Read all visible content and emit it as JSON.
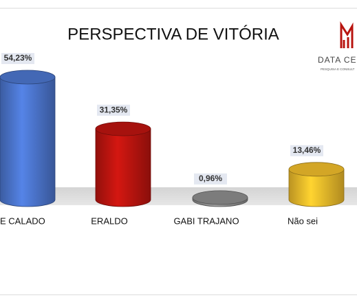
{
  "chart_data": {
    "type": "bar",
    "title": "PERSPECTIVA DE VITÓRIA",
    "logo": {
      "name": "DATA CE",
      "tagline": "PESQUISA E CONSULT"
    },
    "categories": [
      "E CALADO",
      "ERALDO",
      "GABI TRAJANO",
      "Não sei"
    ],
    "series": [
      {
        "values": [
          54.23,
          31.35,
          0.96,
          13.46
        ],
        "value_labels": [
          "54,23%",
          "31,35%",
          "0,96%",
          "13,46%"
        ],
        "colors": [
          "#4a73c9",
          "#b8140f",
          "#8a8a8a",
          "#eab82a"
        ]
      }
    ]
  }
}
